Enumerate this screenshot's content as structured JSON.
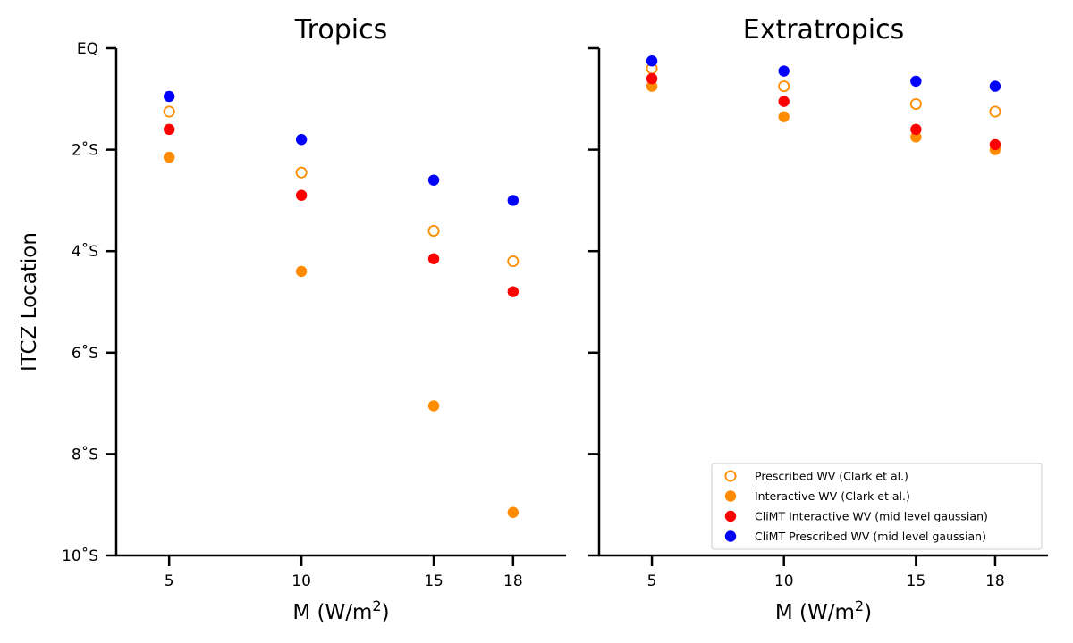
{
  "chart_data": [
    {
      "type": "scatter",
      "title": "Tropics",
      "xlabel_main": "M (W/m",
      "xlabel_sup": "2",
      "xlabel_close": ")",
      "ylabel": "ITCZ Location",
      "x_ticks": [
        5,
        10,
        15,
        18
      ],
      "x_tick_labels": [
        "5",
        "10",
        "15",
        "18"
      ],
      "xlim": [
        3,
        20
      ],
      "ylim": [
        0,
        -10
      ],
      "y_ticks": [
        0,
        -2,
        -4,
        -6,
        -8,
        -10
      ],
      "y_tick_labels": [
        "EQ",
        "2˚S",
        "4˚S",
        "6˚S",
        "8˚S",
        "10˚S"
      ],
      "series": [
        {
          "name": "Prescribed WV (Clark et al.)",
          "color": "#ff8c00",
          "filled": false,
          "x": [
            5,
            10,
            15,
            18
          ],
          "y": [
            -1.25,
            -2.45,
            -3.6,
            -4.2
          ]
        },
        {
          "name": "Interactive WV (Clark et al.)",
          "color": "#ff8c00",
          "filled": true,
          "x": [
            5,
            10,
            15,
            18
          ],
          "y": [
            -2.15,
            -4.4,
            -7.05,
            -9.15
          ]
        },
        {
          "name": "CliMT Interactive WV (mid level gaussian)",
          "color": "#ff0000",
          "filled": true,
          "x": [
            5,
            10,
            15,
            18
          ],
          "y": [
            -1.6,
            -2.9,
            -4.15,
            -4.8
          ]
        },
        {
          "name": "CliMT Prescribed WV (mid level gaussian)",
          "color": "#0000ff",
          "filled": true,
          "x": [
            5,
            10,
            15,
            18
          ],
          "y": [
            -0.95,
            -1.8,
            -2.6,
            -3.0
          ]
        }
      ]
    },
    {
      "type": "scatter",
      "title": "Extratropics",
      "xlabel_main": "M (W/m",
      "xlabel_sup": "2",
      "xlabel_close": ")",
      "x_ticks": [
        5,
        10,
        15,
        18
      ],
      "x_tick_labels": [
        "5",
        "10",
        "15",
        "18"
      ],
      "xlim": [
        3,
        20
      ],
      "ylim": [
        0,
        -10
      ],
      "y_ticks": [
        0,
        -2,
        -4,
        -6,
        -8,
        -10
      ],
      "legend_position": "lower right",
      "series": [
        {
          "name": "Prescribed WV (Clark et al.)",
          "color": "#ff8c00",
          "filled": false,
          "x": [
            5,
            10,
            15,
            18
          ],
          "y": [
            -0.4,
            -0.75,
            -1.1,
            -1.25
          ]
        },
        {
          "name": "Interactive WV (Clark et al.)",
          "color": "#ff8c00",
          "filled": true,
          "x": [
            5,
            10,
            15,
            18
          ],
          "y": [
            -0.75,
            -1.35,
            -1.75,
            -2.0
          ]
        },
        {
          "name": "CliMT Interactive WV (mid level gaussian)",
          "color": "#ff0000",
          "filled": true,
          "x": [
            5,
            10,
            15,
            18
          ],
          "y": [
            -0.6,
            -1.05,
            -1.6,
            -1.9
          ]
        },
        {
          "name": "CliMT Prescribed WV (mid level gaussian)",
          "color": "#0000ff",
          "filled": true,
          "x": [
            5,
            10,
            15,
            18
          ],
          "y": [
            -0.25,
            -0.45,
            -0.65,
            -0.75
          ]
        }
      ]
    }
  ]
}
